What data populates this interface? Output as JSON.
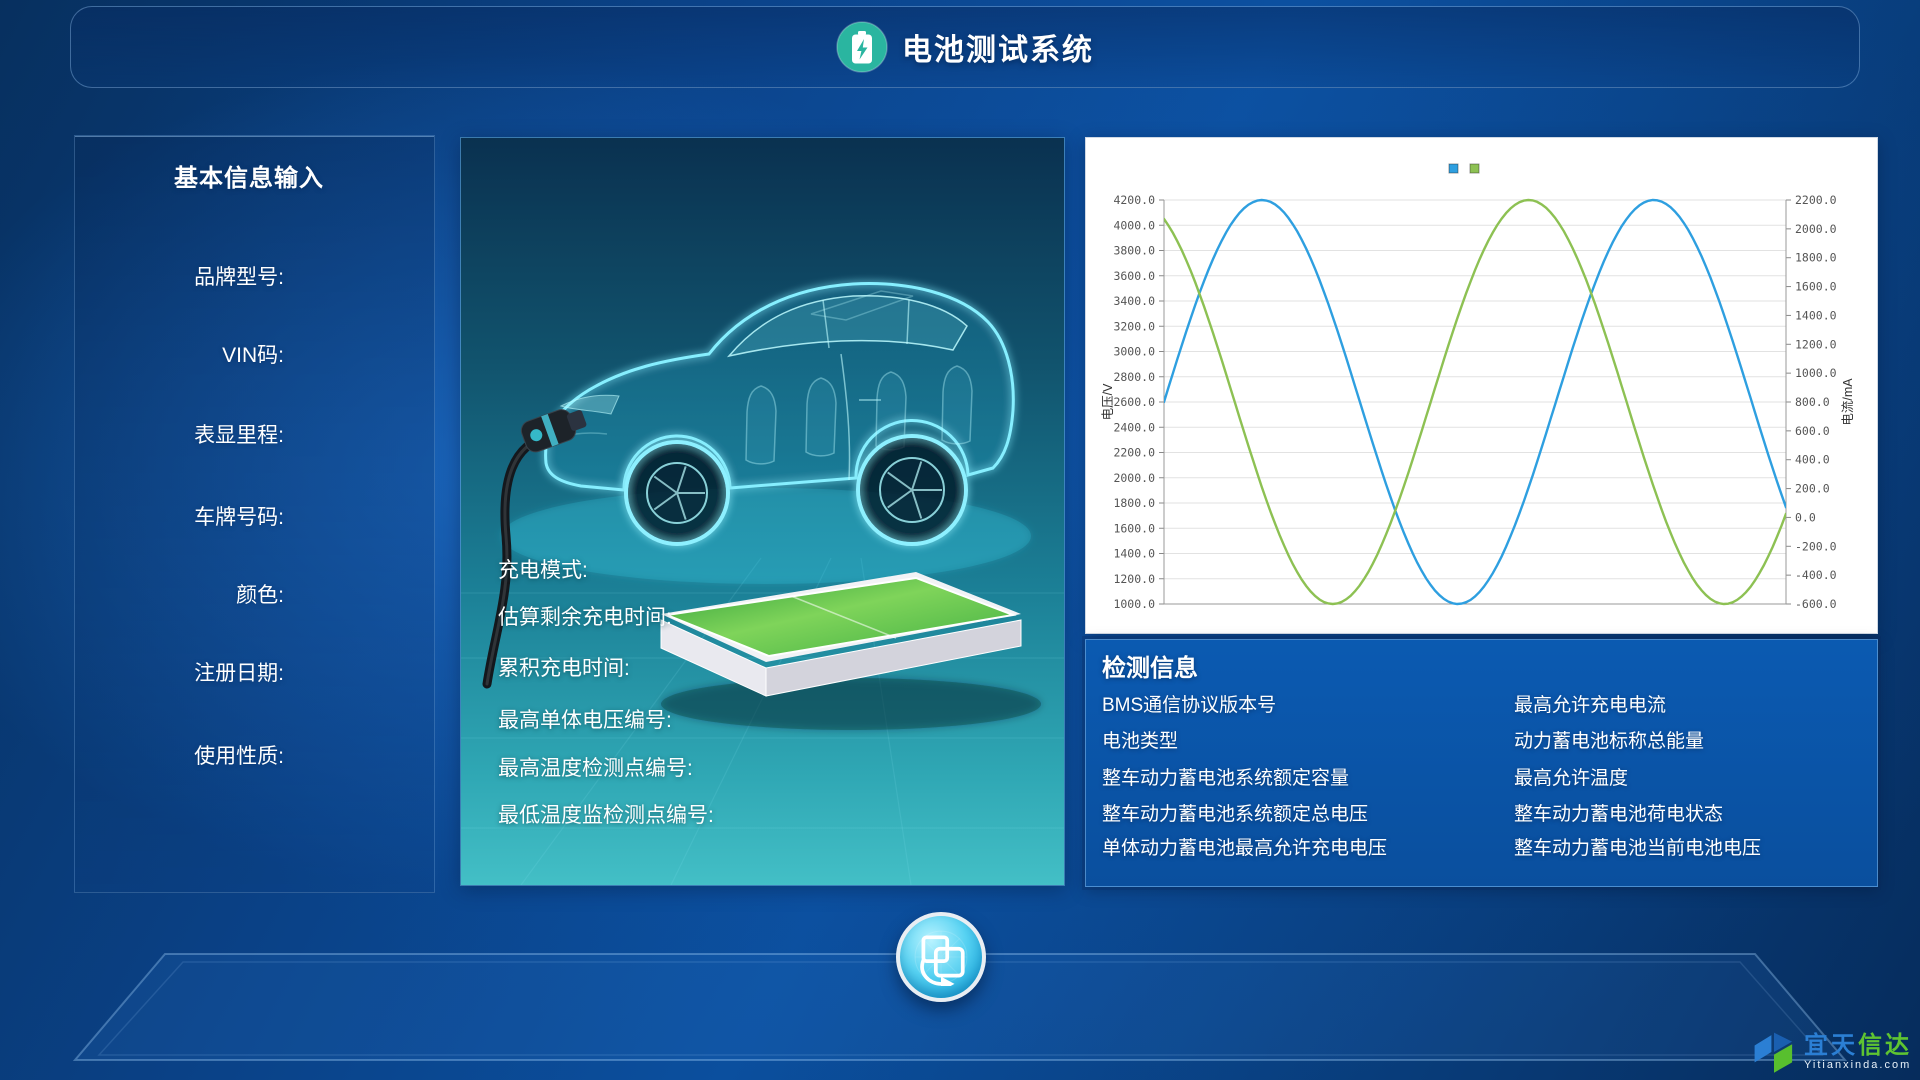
{
  "header": {
    "title": "电池测试系统"
  },
  "icons": {
    "app": "battery-charging-icon",
    "sync": "transfer-sync-icon",
    "watermark": "cube-logo-icon"
  },
  "basic_info": {
    "title": "基本信息输入",
    "fields": [
      "品牌型号:",
      "VIN码:",
      "表显里程:",
      "车牌号码:",
      "颜色:",
      "注册日期:",
      "使用性质:"
    ]
  },
  "charging_info": {
    "fields": [
      "充电模式:",
      "估算剩余充电时间:",
      "累积充电时间:",
      "最高单体电压编号:",
      "最高温度检测点编号:",
      "最低温度监检测点编号:"
    ]
  },
  "chart_data": {
    "type": "line",
    "title": "",
    "xlabel": "",
    "grid": true,
    "plot_background": "#ffffff",
    "y_axis_left": {
      "label": "电压/V",
      "min": 1000,
      "max": 4200,
      "tick_step": 200,
      "ticks": [
        "4200.0",
        "4000.0",
        "3800.0",
        "3600.0",
        "3400.0",
        "3200.0",
        "3000.0",
        "2800.0",
        "2600.0",
        "2400.0",
        "2200.0",
        "2000.0",
        "1800.0",
        "1600.0",
        "1400.0",
        "1200.0",
        "1000.0"
      ]
    },
    "y_axis_right": {
      "label": "电流/mA",
      "min": -600,
      "max": 2200,
      "tick_step": 200,
      "ticks": [
        "2200.0",
        "2000.0",
        "1800.0",
        "1600.0",
        "1400.0",
        "1200.0",
        "1000.0",
        "800.0",
        "600.0",
        "400.0",
        "200.0",
        "0.0",
        "-200.0",
        "-400.0",
        "-600.0"
      ]
    },
    "legend": {
      "position": "top-right",
      "items": [
        {
          "name": "电压",
          "color": "#2e9fe0"
        },
        {
          "name": "电流",
          "color": "#8dc153"
        }
      ]
    },
    "series": [
      {
        "name": "电压",
        "color": "#2e9fe0",
        "value_axis": "left",
        "waveform": {
          "shape": "sine",
          "center": 2600,
          "amplitude": 1600,
          "period_fraction_of_width": 0.63,
          "phase_deg": 0
        },
        "keypoints_voltage": [
          2600,
          4200,
          1000,
          4200,
          1700
        ]
      },
      {
        "name": "电流",
        "color": "#8dc153",
        "value_axis": "left",
        "waveform": {
          "shape": "sine",
          "center": 2600,
          "amplitude": 1600,
          "period_fraction_of_width": 0.63,
          "phase_deg": 115
        },
        "keypoints_voltage": [
          4050,
          1000,
          4200,
          1000,
          1260
        ]
      }
    ]
  },
  "detection_info": {
    "title": "检测信息",
    "left_column": [
      "BMS通信协议版本号",
      "电池类型",
      "整车动力蓄电池系统额定容量",
      "整车动力蓄电池系统额定总电压",
      "单体动力蓄电池最高允许充电电压"
    ],
    "right_column": [
      "最高允许充电电流",
      "动力蓄电池标称总能量",
      "最高允许温度",
      "整车动力蓄电池荷电状态",
      "整车动力蓄电池当前电池电压"
    ]
  },
  "footer": {
    "watermark": {
      "cn_blue": "宜天",
      "cn_green": "信达",
      "en": "Yitianxinda.com"
    }
  },
  "colors": {
    "accent_teal": "#2ab5a0",
    "series_blue": "#2e9fe0",
    "series_green": "#8dc153",
    "panel_blue": "#0a55ab"
  }
}
